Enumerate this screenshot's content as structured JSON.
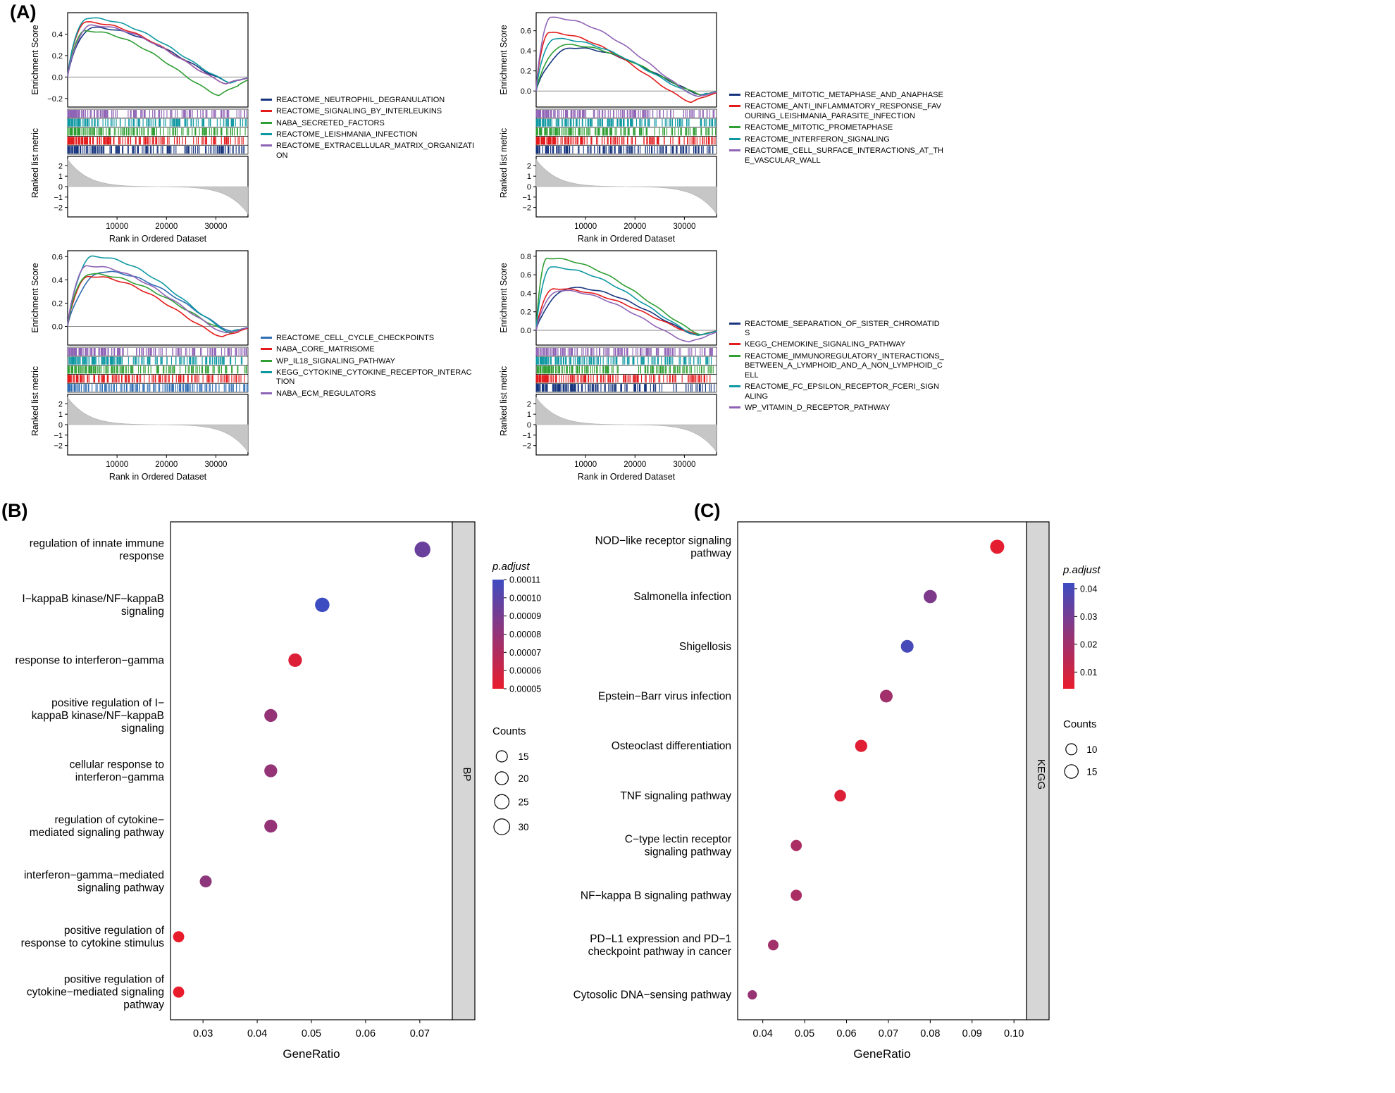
{
  "panel_labels": {
    "A": "(A)",
    "B": "(B)",
    "C": "(C)"
  },
  "chart_data": [
    {
      "id": "gsea_top_left",
      "type": "line",
      "ylabel": "Enrichment Score",
      "metric_ylabel": "Ranked list metric",
      "xlabel": "Rank in Ordered Dataset",
      "x_ticks": [
        10000,
        20000,
        30000
      ],
      "x_max": 36500,
      "es_ylim": [
        -0.28,
        0.6
      ],
      "es_yticks": [
        -0.2,
        0.0,
        0.2,
        0.4
      ],
      "metric_ylim": [
        -2.9,
        2.9
      ],
      "metric_yticks": [
        -2,
        -1,
        0,
        1,
        2
      ],
      "series": [
        {
          "name": "REACTOME_NEUTROPHIL_DEGRANULATION",
          "color": "#17357f",
          "peak_es": 0.46,
          "peak_pos": 0.14,
          "dip_es": -0.05,
          "dip_pos": 0.9
        },
        {
          "name": "REACTOME_SIGNALING_BY_INTERLEUKINS",
          "color": "#e31a1c",
          "peak_es": 0.51,
          "peak_pos": 0.1,
          "dip_es": -0.06,
          "dip_pos": 0.88
        },
        {
          "name": "NABA_SECRETED_FACTORS",
          "color": "#2f9e33",
          "peak_es": 0.43,
          "peak_pos": 0.1,
          "dip_es": -0.17,
          "dip_pos": 0.84
        },
        {
          "name": "REACTOME_LEISHMANIA_INFECTION",
          "color": "#0e98a2",
          "peak_es": 0.55,
          "peak_pos": 0.11,
          "dip_es": -0.05,
          "dip_pos": 0.9
        },
        {
          "name": "REACTOME_EXTRACELLULAR_MATRIX_ORGANIZATION",
          "color": "#8f63b5",
          "peak_es": 0.48,
          "peak_pos": 0.13,
          "dip_es": -0.06,
          "dip_pos": 0.88
        }
      ]
    },
    {
      "id": "gsea_top_right",
      "type": "line",
      "ylabel": "Enrichment Score",
      "metric_ylabel": "Ranked list metric",
      "xlabel": "Rank in Ordered Dataset",
      "x_ticks": [
        10000,
        20000,
        30000
      ],
      "x_max": 36500,
      "es_ylim": [
        -0.16,
        0.78
      ],
      "es_yticks": [
        0.0,
        0.2,
        0.4,
        0.6
      ],
      "metric_ylim": [
        -2.9,
        2.9
      ],
      "metric_yticks": [
        -2,
        -1,
        0,
        1,
        2
      ],
      "series": [
        {
          "name": "REACTOME_MITOTIC_METAPHASE_AND_ANAPHASE",
          "color": "#17357f",
          "peak_es": 0.43,
          "peak_pos": 0.2,
          "dip_es": -0.04,
          "dip_pos": 0.92
        },
        {
          "name": "REACTOME_ANTI_INFLAMMATORY_RESPONSE_FAVOURING_LEISHMANIA_PARASITE_INFECTION",
          "color": "#e31a1c",
          "peak_es": 0.58,
          "peak_pos": 0.07,
          "dip_es": -0.11,
          "dip_pos": 0.86
        },
        {
          "name": "REACTOME_MITOTIC_PROMETAPHASE",
          "color": "#2f9e33",
          "peak_es": 0.46,
          "peak_pos": 0.16,
          "dip_es": -0.04,
          "dip_pos": 0.92
        },
        {
          "name": "REACTOME_INTERFERON_SIGNALING",
          "color": "#0e98a2",
          "peak_es": 0.52,
          "peak_pos": 0.1,
          "dip_es": -0.05,
          "dip_pos": 0.9
        },
        {
          "name": "REACTOME_CELL_SURFACE_INTERACTIONS_AT_THE_VASCULAR_WALL",
          "color": "#8f63b5",
          "peak_es": 0.73,
          "peak_pos": 0.08,
          "dip_es": -0.06,
          "dip_pos": 0.9
        }
      ]
    },
    {
      "id": "gsea_bottom_left",
      "type": "line",
      "ylabel": "Enrichment Score",
      "metric_ylabel": "Ranked list metric",
      "xlabel": "Rank in Ordered Dataset",
      "x_ticks": [
        10000,
        20000,
        30000
      ],
      "x_max": 36500,
      "es_ylim": [
        -0.16,
        0.65
      ],
      "es_yticks": [
        0.0,
        0.2,
        0.4,
        0.6
      ],
      "metric_ylim": [
        -2.9,
        2.9
      ],
      "metric_yticks": [
        -2,
        -1,
        0,
        1,
        2
      ],
      "series": [
        {
          "name": "REACTOME_CELL_CYCLE_CHECKPOINTS",
          "color": "#2e6db4",
          "peak_es": 0.47,
          "peak_pos": 0.2,
          "dip_es": -0.05,
          "dip_pos": 0.92
        },
        {
          "name": "NABA_CORE_MATRISOME",
          "color": "#e31a1c",
          "peak_es": 0.43,
          "peak_pos": 0.12,
          "dip_es": -0.09,
          "dip_pos": 0.86
        },
        {
          "name": "WP_IL18_SIGNALING_PATHWAY",
          "color": "#2f9e33",
          "peak_es": 0.45,
          "peak_pos": 0.12,
          "dip_es": -0.05,
          "dip_pos": 0.9
        },
        {
          "name": "KEGG_CYTOKINE_CYTOKINE_RECEPTOR_INTERACTION",
          "color": "#0e98a2",
          "peak_es": 0.6,
          "peak_pos": 0.14,
          "dip_es": -0.05,
          "dip_pos": 0.9
        },
        {
          "name": "NABA_ECM_REGULATORS",
          "color": "#8f63b5",
          "peak_es": 0.52,
          "peak_pos": 0.11,
          "dip_es": -0.06,
          "dip_pos": 0.88
        }
      ]
    },
    {
      "id": "gsea_bottom_right",
      "type": "line",
      "ylabel": "Enrichment Score",
      "metric_ylabel": "Ranked list metric",
      "xlabel": "Rank in Ordered Dataset",
      "x_ticks": [
        10000,
        20000,
        30000
      ],
      "x_max": 36500,
      "es_ylim": [
        -0.16,
        0.86
      ],
      "es_yticks": [
        0.0,
        0.2,
        0.4,
        0.6,
        0.8
      ],
      "metric_ylim": [
        -2.9,
        2.9
      ],
      "metric_yticks": [
        -2,
        -1,
        0,
        1,
        2
      ],
      "series": [
        {
          "name": "REACTOME_SEPARATION_OF_SISTER_CHROMATIDS",
          "color": "#17357f",
          "peak_es": 0.46,
          "peak_pos": 0.2,
          "dip_es": -0.06,
          "dip_pos": 0.9
        },
        {
          "name": "KEGG_CHEMOKINE_SIGNALING_PATHWAY",
          "color": "#e31a1c",
          "peak_es": 0.45,
          "peak_pos": 0.1,
          "dip_es": -0.05,
          "dip_pos": 0.9
        },
        {
          "name": "REACTOME_IMMUNOREGULATORY_INTERACTIONS_BETWEEN_A_LYMPHOID_AND_A_NON_LYMPHOID_CELL",
          "color": "#2f9e33",
          "peak_es": 0.78,
          "peak_pos": 0.06,
          "dip_es": -0.05,
          "dip_pos": 0.92
        },
        {
          "name": "REACTOME_FC_EPSILON_RECEPTOR_FCERI_SIGNALING",
          "color": "#0e98a2",
          "peak_es": 0.68,
          "peak_pos": 0.08,
          "dip_es": -0.06,
          "dip_pos": 0.9
        },
        {
          "name": "WP_VITAMIN_D_RECEPTOR_PATHWAY",
          "color": "#8f63b5",
          "peak_es": 0.43,
          "peak_pos": 0.13,
          "dip_es": -0.13,
          "dip_pos": 0.85
        }
      ]
    },
    {
      "id": "dotplot_bp",
      "type": "scatter",
      "strip_label": "BP",
      "xlabel": "GeneRatio",
      "xlim": [
        0.024,
        0.076
      ],
      "xticks": [
        0.03,
        0.04,
        0.05,
        0.06,
        0.07
      ],
      "color_legend": {
        "title": "p.adjust",
        "min": 5e-05,
        "max": 0.00011,
        "tick_labels": [
          "0.00011",
          "0.00010",
          "0.00009",
          "0.00008",
          "0.00007",
          "0.00006",
          "0.00005"
        ],
        "tick_values": [
          0.00011,
          0.0001,
          9e-05,
          8e-05,
          7e-05,
          6e-05,
          5e-05
        ]
      },
      "size_legend": {
        "title": "Counts",
        "values": [
          15,
          20,
          25,
          30
        ]
      },
      "rows": [
        {
          "label_lines": [
            "regulation of innate immune",
            "response"
          ],
          "gene_ratio": 0.0705,
          "p_adjust": 9.5e-05,
          "count": 30
        },
        {
          "label_lines": [
            "I−kappaB kinase/NF−kappaB",
            "signaling"
          ],
          "gene_ratio": 0.052,
          "p_adjust": 0.00011,
          "count": 25
        },
        {
          "label_lines": [
            "response to interferon−gamma"
          ],
          "gene_ratio": 0.047,
          "p_adjust": 5.5e-05,
          "count": 22
        },
        {
          "label_lines": [
            "positive regulation of I−",
            "kappaB kinase/NF−kappaB",
            "signaling"
          ],
          "gene_ratio": 0.0425,
          "p_adjust": 8e-05,
          "count": 20
        },
        {
          "label_lines": [
            "cellular response to",
            "interferon−gamma"
          ],
          "gene_ratio": 0.0425,
          "p_adjust": 8e-05,
          "count": 20
        },
        {
          "label_lines": [
            "regulation of cytokine−",
            "mediated signaling pathway"
          ],
          "gene_ratio": 0.0425,
          "p_adjust": 8e-05,
          "count": 20
        },
        {
          "label_lines": [
            "interferon−gamma−mediated",
            "signaling pathway"
          ],
          "gene_ratio": 0.0305,
          "p_adjust": 8.2e-05,
          "count": 17
        },
        {
          "label_lines": [
            "positive regulation of",
            "response to cytokine stimulus"
          ],
          "gene_ratio": 0.0255,
          "p_adjust": 5e-05,
          "count": 15
        },
        {
          "label_lines": [
            "positive regulation of",
            "cytokine−mediated signaling",
            "pathway"
          ],
          "gene_ratio": 0.0255,
          "p_adjust": 5e-05,
          "count": 15
        }
      ]
    },
    {
      "id": "dotplot_kegg",
      "type": "scatter",
      "strip_label": "KEGG",
      "xlabel": "GeneRatio",
      "xlim": [
        0.034,
        0.103
      ],
      "xticks": [
        0.04,
        0.05,
        0.06,
        0.07,
        0.08,
        0.09,
        0.1
      ],
      "color_legend": {
        "title": "p.adjust",
        "min": 0.004,
        "max": 0.042,
        "tick_labels": [
          "0.04",
          "0.03",
          "0.02",
          "0.01"
        ],
        "tick_values": [
          0.04,
          0.03,
          0.02,
          0.01
        ]
      },
      "size_legend": {
        "title": "Counts",
        "values": [
          10,
          15
        ]
      },
      "rows": [
        {
          "label_lines": [
            "NOD−like receptor signaling",
            "pathway"
          ],
          "gene_ratio": 0.096,
          "p_adjust": 0.005,
          "count": 16
        },
        {
          "label_lines": [
            "Salmonella infection"
          ],
          "gene_ratio": 0.08,
          "p_adjust": 0.028,
          "count": 14
        },
        {
          "label_lines": [
            "Shigellosis"
          ],
          "gene_ratio": 0.0745,
          "p_adjust": 0.04,
          "count": 13
        },
        {
          "label_lines": [
            "Epstein−Barr virus infection"
          ],
          "gene_ratio": 0.0695,
          "p_adjust": 0.02,
          "count": 13
        },
        {
          "label_lines": [
            "Osteoclast differentiation"
          ],
          "gene_ratio": 0.0635,
          "p_adjust": 0.006,
          "count": 12
        },
        {
          "label_lines": [
            "TNF signaling pathway"
          ],
          "gene_ratio": 0.0585,
          "p_adjust": 0.007,
          "count": 11
        },
        {
          "label_lines": [
            "C−type lectin receptor",
            "signaling pathway"
          ],
          "gene_ratio": 0.048,
          "p_adjust": 0.018,
          "count": 10
        },
        {
          "label_lines": [
            "NF−kappa B signaling pathway"
          ],
          "gene_ratio": 0.048,
          "p_adjust": 0.018,
          "count": 10
        },
        {
          "label_lines": [
            "PD−L1 expression and PD−1",
            "checkpoint pathway in cancer"
          ],
          "gene_ratio": 0.0425,
          "p_adjust": 0.02,
          "count": 9
        },
        {
          "label_lines": [
            "Cytosolic DNA−sensing pathway"
          ],
          "gene_ratio": 0.0375,
          "p_adjust": 0.022,
          "count": 7
        }
      ]
    }
  ]
}
